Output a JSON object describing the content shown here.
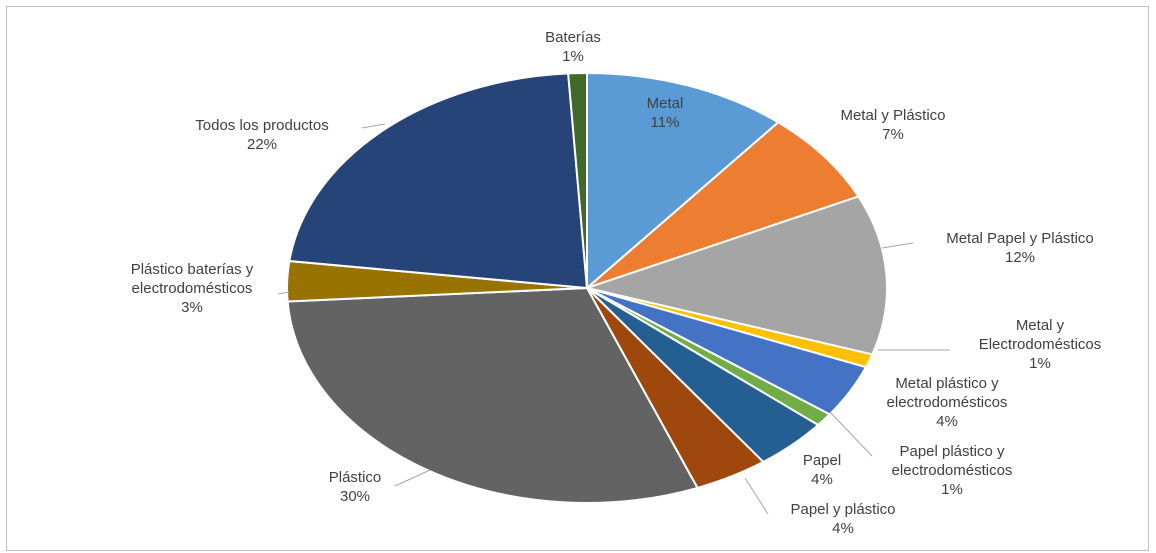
{
  "chart_data": {
    "type": "pie",
    "categories": [
      "Metal",
      "Metal y Plástico",
      "Metal Papel y Plástico",
      "Metal y Electrodomésticos",
      "Metal plástico y electrodomésticos",
      "Papel plástico y electrodomésticos",
      "Papel",
      "Papel y plástico",
      "Plástico",
      "Plástico baterías y electrodomésticos",
      "Todos los productos",
      "Baterías"
    ],
    "label_lines": [
      [
        "Metal"
      ],
      [
        "Metal y Plástico"
      ],
      [
        "Metal Papel y Plástico"
      ],
      [
        "Metal y",
        "Electrodomésticos"
      ],
      [
        "Metal plástico y",
        "electrodomésticos"
      ],
      [
        "Papel plástico y",
        "electrodomésticos"
      ],
      [
        "Papel"
      ],
      [
        "Papel y plástico"
      ],
      [
        "Plástico"
      ],
      [
        "Plástico baterías y",
        "electrodomésticos"
      ],
      [
        "Todos los productos"
      ],
      [
        "Baterías"
      ]
    ],
    "values": [
      11,
      7,
      12,
      1,
      4,
      1,
      4,
      4,
      30,
      3,
      22,
      1
    ],
    "percent_labels": [
      "11%",
      "7%",
      "12%",
      "1%",
      "4%",
      "1%",
      "4%",
      "4%",
      "30%",
      "3%",
      "22%",
      "1%"
    ],
    "colors": [
      "#5b9bd5",
      "#ed7d31",
      "#a5a5a5",
      "#ffc000",
      "#4472c4",
      "#70ad47",
      "#255e91",
      "#9e480e",
      "#636363",
      "#997300",
      "#264478",
      "#43682b"
    ],
    "legend": "none",
    "start_angle_deg": 90,
    "direction": "clockwise"
  }
}
